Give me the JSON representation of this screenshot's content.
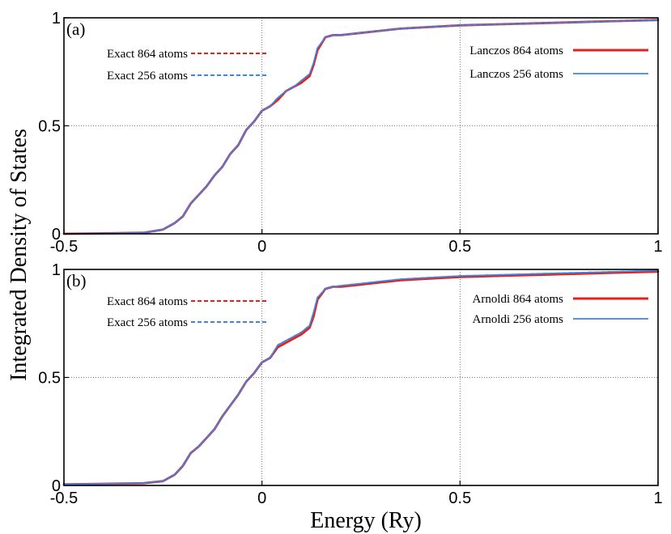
{
  "chart_data": [
    {
      "panel_label": "(a)",
      "type": "line",
      "title": "",
      "xlabel": "Energy  (Ry)",
      "ylabel": "Integrated Density of States",
      "xlim": [
        -0.5,
        1.0
      ],
      "ylim": [
        0,
        1
      ],
      "grid": true,
      "x_ticks": [
        -0.5,
        0,
        0.5,
        1
      ],
      "x_tick_labels": [
        "-0.5",
        "0",
        "0.5",
        "1"
      ],
      "y_ticks": [
        0,
        0.5,
        1
      ],
      "y_tick_labels": [
        "0",
        "0.5",
        "1"
      ],
      "legend": [
        {
          "label": "Exact  864 atoms",
          "color": "#e8201a",
          "style": "dashed"
        },
        {
          "label": "Exact  256 atoms",
          "color": "#3a86e8",
          "style": "dashed"
        },
        {
          "label": "Lanczos  864 atoms",
          "color": "#e8201a",
          "style": "solid"
        },
        {
          "label": "Lanczos  256 atoms",
          "color": "#3a86e8",
          "style": "solid"
        }
      ],
      "series": [
        {
          "name": "Exact  864 atoms",
          "color": "#e8201a",
          "style": "dashed",
          "x": [
            -0.5,
            -0.3,
            -0.25,
            -0.22,
            -0.2,
            -0.18,
            -0.16,
            -0.14,
            -0.12,
            -0.1,
            -0.08,
            -0.06,
            -0.04,
            -0.02,
            0,
            0.02,
            0.04,
            0.06,
            0.08,
            0.1,
            0.12,
            0.13,
            0.14,
            0.16,
            0.18,
            0.2,
            0.25,
            0.3,
            0.35,
            0.4,
            0.5,
            0.6,
            0.7,
            0.8,
            0.9,
            1.0
          ],
          "y": [
            0,
            0.005,
            0.02,
            0.05,
            0.08,
            0.14,
            0.18,
            0.22,
            0.27,
            0.31,
            0.37,
            0.41,
            0.48,
            0.52,
            0.57,
            0.59,
            0.62,
            0.66,
            0.68,
            0.7,
            0.73,
            0.78,
            0.85,
            0.91,
            0.92,
            0.92,
            0.93,
            0.94,
            0.95,
            0.955,
            0.965,
            0.97,
            0.975,
            0.98,
            0.985,
            0.99
          ]
        },
        {
          "name": "Exact  256 atoms",
          "color": "#3a86e8",
          "style": "dashed",
          "x": [
            -0.5,
            -0.3,
            -0.25,
            -0.22,
            -0.2,
            -0.18,
            -0.16,
            -0.14,
            -0.12,
            -0.1,
            -0.08,
            -0.06,
            -0.04,
            -0.02,
            0,
            0.02,
            0.04,
            0.06,
            0.08,
            0.1,
            0.12,
            0.13,
            0.14,
            0.16,
            0.18,
            0.2,
            0.25,
            0.3,
            0.35,
            0.4,
            0.5,
            0.6,
            0.7,
            0.8,
            0.9,
            1.0
          ],
          "y": [
            0,
            0.005,
            0.02,
            0.05,
            0.08,
            0.14,
            0.18,
            0.22,
            0.27,
            0.31,
            0.37,
            0.41,
            0.48,
            0.52,
            0.57,
            0.59,
            0.63,
            0.66,
            0.68,
            0.71,
            0.74,
            0.79,
            0.86,
            0.91,
            0.92,
            0.92,
            0.93,
            0.94,
            0.95,
            0.955,
            0.965,
            0.97,
            0.975,
            0.98,
            0.985,
            0.99
          ]
        },
        {
          "name": "Lanczos  864 atoms",
          "color": "#e8201a",
          "style": "solid",
          "x": [
            -0.5,
            -0.3,
            -0.25,
            -0.22,
            -0.2,
            -0.18,
            -0.16,
            -0.14,
            -0.12,
            -0.1,
            -0.08,
            -0.06,
            -0.04,
            -0.02,
            0,
            0.02,
            0.04,
            0.06,
            0.08,
            0.1,
            0.12,
            0.13,
            0.14,
            0.16,
            0.18,
            0.2,
            0.25,
            0.3,
            0.35,
            0.4,
            0.5,
            0.6,
            0.7,
            0.8,
            0.9,
            1.0
          ],
          "y": [
            0,
            0.005,
            0.02,
            0.05,
            0.08,
            0.14,
            0.18,
            0.22,
            0.27,
            0.31,
            0.37,
            0.41,
            0.48,
            0.52,
            0.57,
            0.59,
            0.62,
            0.66,
            0.68,
            0.7,
            0.73,
            0.78,
            0.85,
            0.91,
            0.92,
            0.92,
            0.93,
            0.94,
            0.95,
            0.955,
            0.965,
            0.97,
            0.975,
            0.98,
            0.985,
            0.99
          ]
        },
        {
          "name": "Lanczos  256 atoms",
          "color": "#3a86e8",
          "style": "solid",
          "x": [
            -0.5,
            -0.3,
            -0.25,
            -0.22,
            -0.2,
            -0.18,
            -0.16,
            -0.14,
            -0.12,
            -0.1,
            -0.08,
            -0.06,
            -0.04,
            -0.02,
            0,
            0.02,
            0.04,
            0.06,
            0.08,
            0.1,
            0.12,
            0.13,
            0.14,
            0.16,
            0.18,
            0.2,
            0.25,
            0.3,
            0.35,
            0.4,
            0.5,
            0.6,
            0.7,
            0.8,
            0.9,
            1.0
          ],
          "y": [
            0,
            0.005,
            0.02,
            0.05,
            0.08,
            0.14,
            0.18,
            0.22,
            0.27,
            0.31,
            0.37,
            0.41,
            0.48,
            0.52,
            0.57,
            0.59,
            0.63,
            0.66,
            0.68,
            0.71,
            0.74,
            0.79,
            0.86,
            0.91,
            0.92,
            0.92,
            0.93,
            0.94,
            0.95,
            0.955,
            0.965,
            0.97,
            0.975,
            0.98,
            0.985,
            0.99
          ]
        }
      ]
    },
    {
      "panel_label": "(b)",
      "type": "line",
      "title": "",
      "xlabel": "Energy  (Ry)",
      "ylabel": "Integrated Density of States",
      "xlim": [
        -0.5,
        1.0
      ],
      "ylim": [
        0,
        1
      ],
      "grid": true,
      "x_ticks": [
        -0.5,
        0,
        0.5,
        1
      ],
      "x_tick_labels": [
        "-0.5",
        "0",
        "0.5",
        "1"
      ],
      "y_ticks": [
        0,
        0.5,
        1
      ],
      "y_tick_labels": [
        "0",
        "0.5",
        "1"
      ],
      "legend": [
        {
          "label": "Exact  864 atoms",
          "color": "#e8201a",
          "style": "dashed"
        },
        {
          "label": "Exact  256 atoms",
          "color": "#3a86e8",
          "style": "dashed"
        },
        {
          "label": "Arnoldi  864 atoms",
          "color": "#e8201a",
          "style": "solid"
        },
        {
          "label": "Arnoldi  256 atoms",
          "color": "#3a86e8",
          "style": "solid"
        }
      ],
      "series": [
        {
          "name": "Exact  864 atoms",
          "color": "#e8201a",
          "style": "dashed",
          "x": [
            -0.5,
            -0.3,
            -0.25,
            -0.22,
            -0.2,
            -0.18,
            -0.16,
            -0.14,
            -0.12,
            -0.1,
            -0.08,
            -0.06,
            -0.04,
            -0.02,
            0,
            0.02,
            0.04,
            0.06,
            0.08,
            0.1,
            0.12,
            0.13,
            0.14,
            0.16,
            0.18,
            0.2,
            0.25,
            0.3,
            0.35,
            0.4,
            0.5,
            0.6,
            0.7,
            0.8,
            0.9,
            1.0
          ],
          "y": [
            0.005,
            0.01,
            0.02,
            0.05,
            0.09,
            0.15,
            0.18,
            0.22,
            0.26,
            0.32,
            0.37,
            0.42,
            0.48,
            0.52,
            0.57,
            0.59,
            0.64,
            0.66,
            0.68,
            0.7,
            0.73,
            0.78,
            0.86,
            0.91,
            0.92,
            0.92,
            0.93,
            0.94,
            0.95,
            0.955,
            0.965,
            0.97,
            0.975,
            0.98,
            0.985,
            0.99
          ]
        },
        {
          "name": "Exact  256 atoms",
          "color": "#3a86e8",
          "style": "dashed",
          "x": [
            -0.5,
            -0.3,
            -0.25,
            -0.22,
            -0.2,
            -0.18,
            -0.16,
            -0.14,
            -0.12,
            -0.1,
            -0.08,
            -0.06,
            -0.04,
            -0.02,
            0,
            0.02,
            0.04,
            0.06,
            0.08,
            0.1,
            0.12,
            0.13,
            0.14,
            0.16,
            0.18,
            0.2,
            0.25,
            0.3,
            0.35,
            0.4,
            0.5,
            0.6,
            0.7,
            0.8,
            0.9,
            1.0
          ],
          "y": [
            0.005,
            0.01,
            0.02,
            0.05,
            0.09,
            0.15,
            0.18,
            0.22,
            0.26,
            0.32,
            0.37,
            0.42,
            0.48,
            0.52,
            0.57,
            0.59,
            0.65,
            0.67,
            0.69,
            0.71,
            0.74,
            0.8,
            0.87,
            0.91,
            0.92,
            0.925,
            0.935,
            0.945,
            0.955,
            0.96,
            0.97,
            0.975,
            0.98,
            0.985,
            0.99,
            0.995
          ]
        },
        {
          "name": "Arnoldi  864 atoms",
          "color": "#e8201a",
          "style": "solid",
          "x": [
            -0.5,
            -0.3,
            -0.25,
            -0.22,
            -0.2,
            -0.18,
            -0.16,
            -0.14,
            -0.12,
            -0.1,
            -0.08,
            -0.06,
            -0.04,
            -0.02,
            0,
            0.02,
            0.04,
            0.06,
            0.08,
            0.1,
            0.12,
            0.13,
            0.14,
            0.16,
            0.18,
            0.2,
            0.25,
            0.3,
            0.35,
            0.4,
            0.5,
            0.6,
            0.7,
            0.8,
            0.9,
            1.0
          ],
          "y": [
            0.005,
            0.01,
            0.02,
            0.05,
            0.09,
            0.15,
            0.18,
            0.22,
            0.26,
            0.32,
            0.37,
            0.42,
            0.48,
            0.52,
            0.57,
            0.59,
            0.64,
            0.66,
            0.68,
            0.7,
            0.73,
            0.78,
            0.86,
            0.91,
            0.92,
            0.92,
            0.93,
            0.94,
            0.95,
            0.955,
            0.965,
            0.97,
            0.975,
            0.98,
            0.985,
            0.99
          ]
        },
        {
          "name": "Arnoldi  256 atoms",
          "color": "#3a86e8",
          "style": "solid",
          "x": [
            -0.5,
            -0.3,
            -0.25,
            -0.22,
            -0.2,
            -0.18,
            -0.16,
            -0.14,
            -0.12,
            -0.1,
            -0.08,
            -0.06,
            -0.04,
            -0.02,
            0,
            0.02,
            0.04,
            0.06,
            0.08,
            0.1,
            0.12,
            0.13,
            0.14,
            0.16,
            0.18,
            0.2,
            0.25,
            0.3,
            0.35,
            0.4,
            0.5,
            0.6,
            0.7,
            0.8,
            0.9,
            1.0
          ],
          "y": [
            0.005,
            0.01,
            0.02,
            0.05,
            0.09,
            0.15,
            0.18,
            0.22,
            0.26,
            0.32,
            0.37,
            0.42,
            0.48,
            0.52,
            0.57,
            0.59,
            0.65,
            0.67,
            0.69,
            0.71,
            0.74,
            0.8,
            0.87,
            0.91,
            0.92,
            0.925,
            0.935,
            0.945,
            0.955,
            0.96,
            0.97,
            0.975,
            0.98,
            0.985,
            0.99,
            0.995
          ]
        }
      ]
    }
  ]
}
